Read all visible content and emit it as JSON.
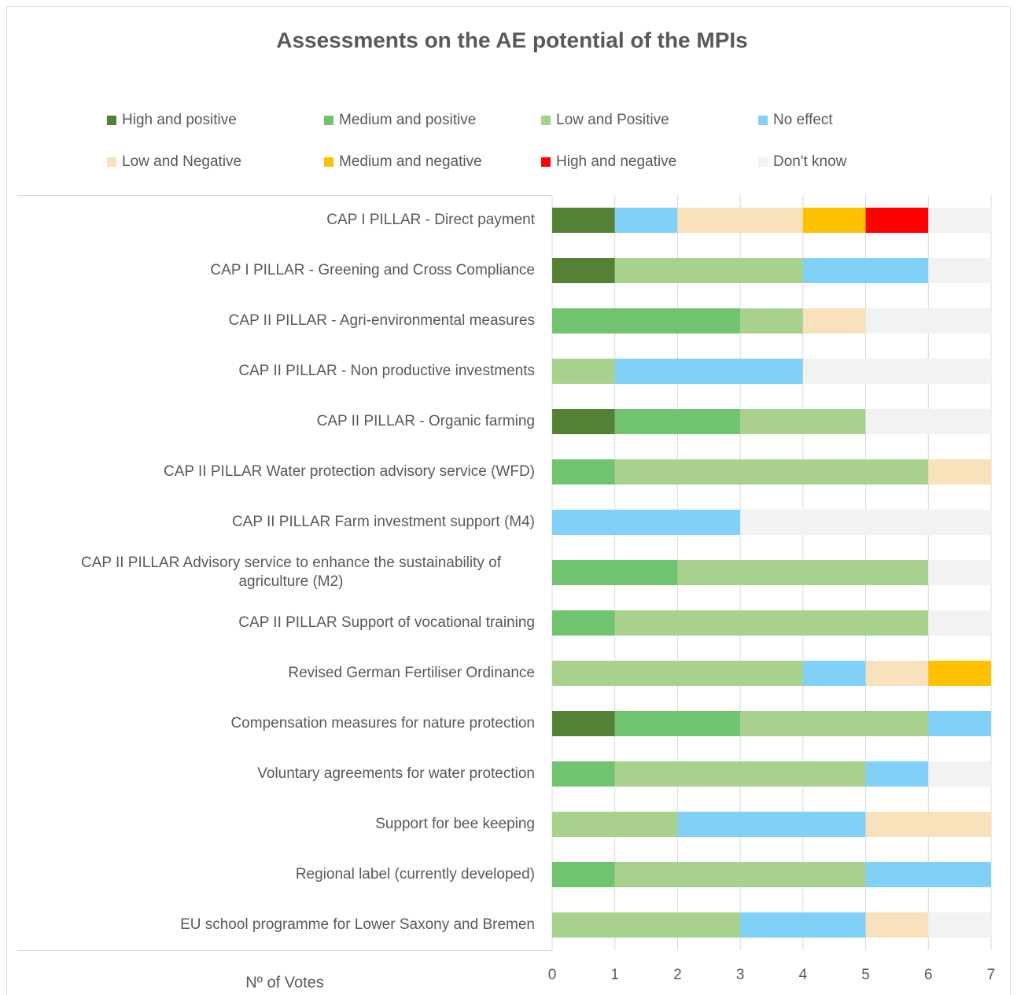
{
  "chart_data": {
    "type": "stacked-barh",
    "title": "Assessments on the AE potential of the MPIs",
    "xlabel": "Nº of Votes",
    "categories": [
      "CAP I PILLAR - Direct payment",
      "CAP I PILLAR - Greening and Cross Compliance",
      "CAP II PILLAR - Agri-environmental measures",
      "CAP II PILLAR - Non productive investments",
      "CAP II PILLAR - Organic farming",
      "CAP II PILLAR Water protection advisory service (WFD)",
      "CAP II PILLAR Farm investment support (M4)",
      "CAP II PILLAR Advisory service to enhance the sustainability of agriculture (M2)",
      "CAP II PILLAR Support of vocational training",
      "Revised German Fertiliser Ordinance",
      "Compensation measures for nature protection",
      "Voluntary agreements for water protection",
      "Support for bee keeping",
      "Regional label (currently developed)",
      "EU school programme for Lower Saxony and Bremen"
    ],
    "series": [
      {
        "name": "High and positive",
        "color": "#548235",
        "values": [
          1,
          1,
          0,
          0,
          1,
          0,
          0,
          0,
          0,
          0,
          1,
          0,
          0,
          0,
          0
        ]
      },
      {
        "name": "Medium and positive",
        "color": "#70c46f",
        "values": [
          0,
          0,
          3,
          0,
          2,
          1,
          0,
          2,
          1,
          0,
          2,
          1,
          0,
          1,
          0
        ]
      },
      {
        "name": "Low and Positive",
        "color": "#a9d18e",
        "values": [
          0,
          3,
          1,
          1,
          2,
          5,
          0,
          4,
          5,
          4,
          3,
          4,
          2,
          4,
          3
        ]
      },
      {
        "name": "No effect",
        "color": "#81d0f8",
        "values": [
          1,
          2,
          0,
          3,
          0,
          0,
          3,
          0,
          0,
          1,
          1,
          1,
          3,
          2,
          2
        ]
      },
      {
        "name": "Low and Negative",
        "color": "#f8e1bb",
        "values": [
          2,
          0,
          1,
          0,
          0,
          1,
          0,
          0,
          0,
          1,
          0,
          0,
          2,
          0,
          1
        ]
      },
      {
        "name": "Medium and negative",
        "color": "#ffc000",
        "values": [
          1,
          0,
          0,
          0,
          0,
          0,
          0,
          0,
          0,
          1,
          0,
          0,
          0,
          0,
          0
        ]
      },
      {
        "name": "High and negative",
        "color": "#ff0000",
        "values": [
          1,
          0,
          0,
          0,
          0,
          0,
          0,
          0,
          0,
          0,
          0,
          0,
          0,
          0,
          0
        ]
      },
      {
        "name": "Don't know",
        "color": "#f2f2f2",
        "values": [
          1,
          1,
          2,
          3,
          2,
          0,
          4,
          1,
          1,
          0,
          0,
          1,
          0,
          0,
          1
        ]
      }
    ],
    "xlim": [
      0,
      7
    ],
    "xticks": [
      0,
      1,
      2,
      3,
      4,
      5,
      6,
      7
    ],
    "grid": true,
    "legend": "top"
  }
}
